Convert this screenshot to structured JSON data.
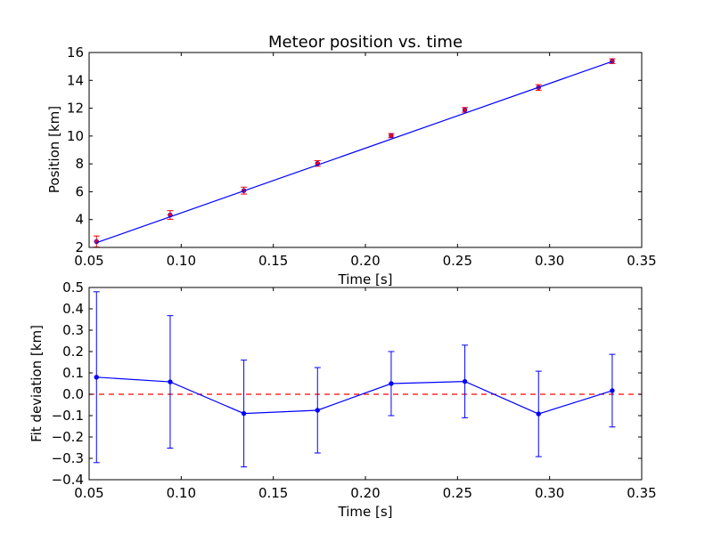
{
  "chart_data": [
    {
      "type": "scatter",
      "title": "Meteor position vs. time",
      "xlabel": "Time [s]",
      "ylabel": "Position [km]",
      "xlim": [
        0.05,
        0.35
      ],
      "ylim": [
        2,
        16
      ],
      "xticks": [
        "0.05",
        "0.10",
        "0.15",
        "0.20",
        "0.25",
        "0.30",
        "0.35"
      ],
      "yticks": [
        "2",
        "4",
        "6",
        "8",
        "10",
        "12",
        "14",
        "16"
      ],
      "grid": false,
      "series": [
        {
          "kind": "errorbar-points",
          "color": "#ff0000",
          "x": [
            0.054,
            0.094,
            0.134,
            0.174,
            0.214,
            0.254,
            0.294,
            0.334
          ],
          "y": [
            2.42,
            4.33,
            6.08,
            8.03,
            10.03,
            11.88,
            13.49,
            15.38
          ],
          "yerr": [
            0.4,
            0.31,
            0.25,
            0.2,
            0.15,
            0.17,
            0.2,
            0.17
          ]
        },
        {
          "kind": "fit-line",
          "color": "#0000ff",
          "x": [
            0.054,
            0.334
          ],
          "y": [
            2.34,
            15.36
          ]
        }
      ]
    },
    {
      "type": "line",
      "title": "",
      "xlabel": "Time [s]",
      "ylabel": "Fit deviation [km]",
      "xlim": [
        0.05,
        0.35
      ],
      "ylim": [
        -0.4,
        0.5
      ],
      "xticks": [
        "0.05",
        "0.10",
        "0.15",
        "0.20",
        "0.25",
        "0.30",
        "0.35"
      ],
      "yticks": [
        "−0.4",
        "−0.3",
        "−0.2",
        "−0.1",
        "0.0",
        "0.1",
        "0.2",
        "0.3",
        "0.4",
        "0.5"
      ],
      "grid": false,
      "reference_line": {
        "y": 0,
        "color": "#ff0000",
        "style": "dashed"
      },
      "series": [
        {
          "kind": "errorbar-line",
          "color": "#0000ff",
          "x": [
            0.054,
            0.094,
            0.134,
            0.174,
            0.214,
            0.254,
            0.294,
            0.334
          ],
          "y": [
            0.08,
            0.058,
            -0.09,
            -0.075,
            0.05,
            0.06,
            -0.092,
            0.017
          ],
          "yerr": [
            0.4,
            0.31,
            0.25,
            0.2,
            0.15,
            0.17,
            0.2,
            0.17
          ]
        }
      ]
    }
  ]
}
